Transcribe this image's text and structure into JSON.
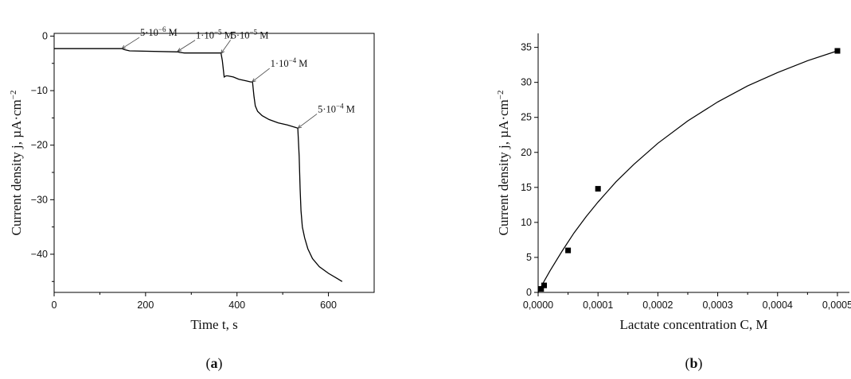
{
  "chart_data": [
    {
      "type": "line",
      "panel_label": "(a)",
      "panel_letter": "a",
      "xlabel": "Time t, s",
      "ylabel": "Current density j, µA·cm",
      "ylabel_sup": "−2",
      "xlim": [
        0,
        700
      ],
      "ylim": [
        -47,
        0.5
      ],
      "xticks": [
        0,
        200,
        400,
        600
      ],
      "yticks": [
        0,
        -10,
        -20,
        -30,
        -40
      ],
      "x": [
        0,
        100,
        148,
        155,
        165,
        270,
        275,
        285,
        365,
        368,
        372,
        376,
        380,
        392,
        404,
        420,
        430,
        434,
        437,
        440,
        445,
        455,
        470,
        490,
        510,
        530,
        533,
        536,
        538,
        540,
        543,
        548,
        555,
        565,
        580,
        600,
        620,
        630
      ],
      "y": [
        -2.3,
        -2.3,
        -2.3,
        -2.5,
        -2.7,
        -2.9,
        -3.0,
        -3.1,
        -3.1,
        -4.5,
        -7.5,
        -7.3,
        -7.3,
        -7.5,
        -7.9,
        -8.2,
        -8.4,
        -8.4,
        -11.0,
        -12.8,
        -13.8,
        -14.6,
        -15.3,
        -15.9,
        -16.3,
        -16.8,
        -16.9,
        -22.0,
        -28.0,
        -32.0,
        -35.0,
        -37.0,
        -39.0,
        -40.8,
        -42.3,
        -43.5,
        -44.5,
        -45.0
      ],
      "annotations": [
        {
          "base": "5·10",
          "exp": "−6",
          "unit": " M",
          "x": 148,
          "y": -2.3
        },
        {
          "base": "1·10",
          "exp": "−5",
          "unit": " M",
          "x": 270,
          "y": -2.8
        },
        {
          "base": "5·10",
          "exp": "−5",
          "unit": " M",
          "x": 365,
          "y": -3.2
        },
        {
          "base": "1·10",
          "exp": "−4",
          "unit": " M",
          "x": 433,
          "y": -8.4
        },
        {
          "base": "5·10",
          "exp": "−4",
          "unit": " M",
          "x": 533,
          "y": -16.9
        }
      ]
    },
    {
      "type": "scatter",
      "panel_label": "(b)",
      "panel_letter": "b",
      "xlabel": "Lactate concentration C, M",
      "ylabel": "Current density j, µA·cm",
      "ylabel_sup": "−2",
      "xlim": [
        0,
        0.00052
      ],
      "ylim": [
        0,
        37
      ],
      "xticks": [
        0,
        0.0001,
        0.0002,
        0.0003,
        0.0004,
        0.0005
      ],
      "xtick_labels": [
        "0,0000",
        "0,0001",
        "0,0002",
        "0,0003",
        "0,0004",
        "0,0005"
      ],
      "yticks": [
        0,
        5,
        10,
        15,
        20,
        25,
        30,
        35
      ],
      "points": {
        "x": [
          5e-06,
          1e-05,
          5e-05,
          0.0001,
          0.0005
        ],
        "y": [
          0.5,
          1.0,
          6.0,
          14.8,
          34.5
        ]
      },
      "fit": {
        "x": [
          0,
          1e-05,
          2e-05,
          4e-05,
          6e-05,
          8e-05,
          0.0001,
          0.00013,
          0.00016,
          0.0002,
          0.00025,
          0.0003,
          0.00035,
          0.0004,
          0.00045,
          0.0005
        ],
        "y": [
          0,
          1.6,
          3.1,
          5.9,
          8.5,
          10.8,
          12.9,
          15.8,
          18.3,
          21.3,
          24.5,
          27.2,
          29.5,
          31.4,
          33.1,
          34.5
        ]
      }
    }
  ]
}
